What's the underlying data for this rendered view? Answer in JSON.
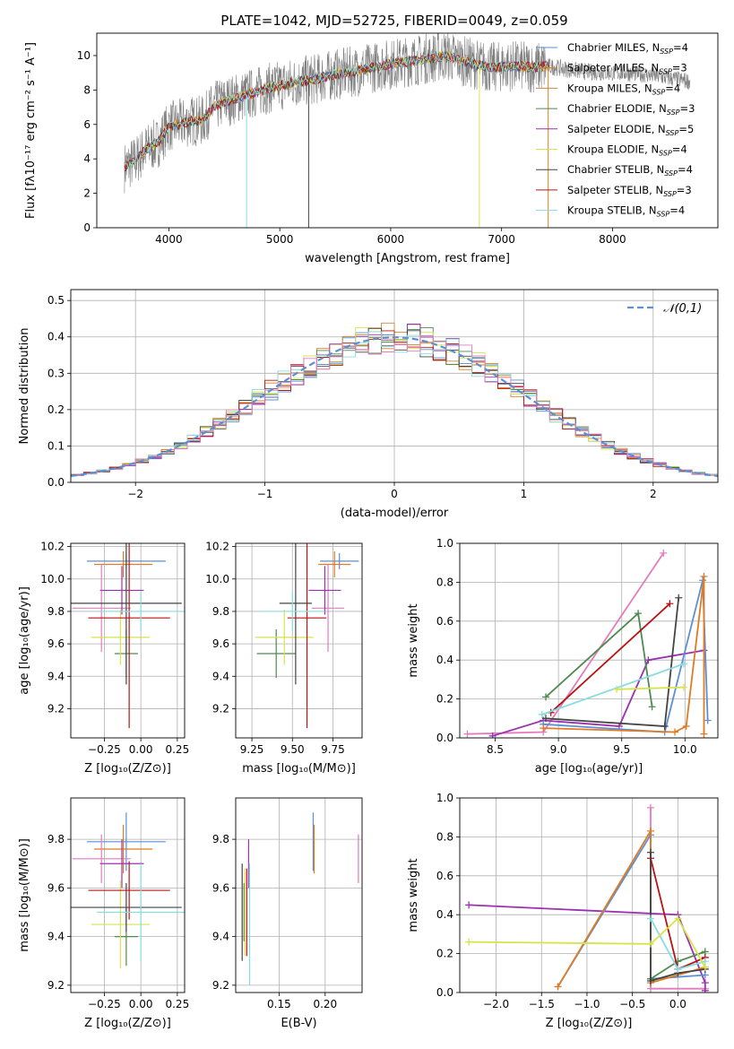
{
  "page_title": "PLATE=1042, MJD=52725, FIBERID=0049, z=0.059",
  "colors": {
    "Chabrier MILES": "#5b8fd6",
    "Salpeter MILES": "#e07b22",
    "Kroupa MILES": "#c9893a",
    "Chabrier ELODIE": "#4f8a4f",
    "Salpeter ELODIE": "#9b30b0",
    "Kroupa ELODIE": "#d7e34d",
    "Chabrier STELIB": "#444444",
    "Salpeter STELIB": "#b81414",
    "Kroupa STELIB": "#86dce0",
    "pink": "#e37bbf",
    "data": "#808080",
    "normal": "#5b8fd6"
  },
  "chart_data": [
    {
      "type": "line",
      "name": "spectrum",
      "title": "PLATE=1042, MJD=52725, FIBERID=0049, z=0.059",
      "xlabel": "wavelength [Angstrom, rest frame]",
      "ylabel": "Flux [fλ10⁻¹⁷ erg cm⁻² s⁻¹ A⁻¹]",
      "xlim": [
        3350,
        8950
      ],
      "ylim": [
        0,
        11.3
      ],
      "xticks": [
        4000,
        5000,
        6000,
        7000,
        8000
      ],
      "yticks": [
        0,
        2,
        4,
        6,
        8,
        10
      ],
      "grid": false,
      "legend_position": "right",
      "continuum": {
        "x": [
          3600,
          3700,
          3800,
          3900,
          4000,
          4100,
          4200,
          4300,
          4400,
          4500,
          4700,
          4900,
          5100,
          5300,
          5500,
          5700,
          5900,
          6100,
          6300,
          6500,
          6700,
          6900,
          7100,
          7300,
          7400,
          7500,
          7700,
          7900,
          8100,
          8300,
          8500,
          8700
        ],
        "y": [
          3.5,
          3.9,
          4.6,
          4.9,
          5.9,
          6.0,
          6.2,
          6.2,
          7.0,
          7.3,
          7.7,
          8.1,
          8.4,
          8.6,
          8.9,
          9.1,
          9.4,
          9.6,
          9.8,
          10.0,
          9.6,
          9.3,
          9.4,
          9.3,
          9.4,
          9.3,
          9.1,
          9.0,
          9.0,
          8.9,
          8.7,
          8.5
        ]
      },
      "series": [
        {
          "name": "Chabrier MILES, N_SSP=4",
          "label_prefix": "Chabrier MILES, N",
          "ssp": "=4",
          "color": "#5b8fd6"
        },
        {
          "name": "Salpeter MILES, N_SSP=3",
          "label_prefix": "Salpeter MILES, N",
          "ssp": "=3",
          "color": "#e07b22"
        },
        {
          "name": "Kroupa MILES, N_SSP=4",
          "label_prefix": "Kroupa MILES, N",
          "ssp": "=4",
          "color": "#c9893a"
        },
        {
          "name": "Chabrier ELODIE, N_SSP=3",
          "label_prefix": "Chabrier ELODIE, N",
          "ssp": "=3",
          "color": "#4f8a4f"
        },
        {
          "name": "Salpeter ELODIE, N_SSP=5",
          "label_prefix": "Salpeter ELODIE, N",
          "ssp": "=5",
          "color": "#9b30b0"
        },
        {
          "name": "Kroupa ELODIE, N_SSP=4",
          "label_prefix": "Kroupa ELODIE, N",
          "ssp": "=4",
          "color": "#d7e34d"
        },
        {
          "name": "Chabrier STELIB, N_SSP=4",
          "label_prefix": "Chabrier STELIB, N",
          "ssp": "=4",
          "color": "#444444"
        },
        {
          "name": "Salpeter STELIB, N_SSP=3",
          "label_prefix": "Salpeter STELIB, N",
          "ssp": "=3",
          "color": "#b81414"
        },
        {
          "name": "Kroupa STELIB, N_SSP=4",
          "label_prefix": "Kroupa STELIB, N",
          "ssp": "=4",
          "color": "#86dce0"
        }
      ],
      "ssp_subscript": "SSP"
    },
    {
      "type": "bar",
      "name": "residual histogram",
      "xlabel": "(data-model)/error",
      "ylabel": "Normed distribution",
      "xlim": [
        -2.5,
        2.5
      ],
      "ylim": [
        0,
        0.53
      ],
      "xticks": [
        -2,
        -1,
        0,
        1,
        2
      ],
      "yticks": [
        0.0,
        0.1,
        0.2,
        0.3,
        0.4,
        0.5
      ],
      "grid": true,
      "legend_position": "top-right",
      "legend": "𝒩(0,1)",
      "bin_width": 0.1
    },
    {
      "type": "scatter",
      "name": "age vs Z",
      "xlabel": "Z [log₁₀(Z/Z⊙)]",
      "ylabel": "age  [log₁₀(age/yr)]",
      "xlim": [
        -0.48,
        0.3
      ],
      "ylim": [
        9.02,
        10.22
      ],
      "xticks": [
        -0.25,
        0.0,
        0.25
      ],
      "yticks": [
        9.2,
        9.4,
        9.6,
        9.8,
        10.0,
        10.2
      ],
      "grid": true,
      "points": [
        {
          "color": "#5b8fd6",
          "x": -0.1,
          "xerr": 0.27,
          "y": 10.11,
          "yerr": 0.05
        },
        {
          "color": "#e07b22",
          "x": -0.12,
          "xerr": 0.2,
          "y": 10.09,
          "yerr": 0.08
        },
        {
          "color": "#e37bbf",
          "x": -0.27,
          "xerr": 0.2,
          "y": 9.82,
          "yerr": 0.27
        },
        {
          "color": "#4f8a4f",
          "x": -0.1,
          "xerr": 0.08,
          "y": 9.54,
          "yerr": 0.15
        },
        {
          "color": "#9b30b0",
          "x": -0.13,
          "xerr": 0.15,
          "y": 9.93,
          "yerr": 0.15
        },
        {
          "color": "#d7e34d",
          "x": -0.14,
          "xerr": 0.2,
          "y": 9.64,
          "yerr": 0.17
        },
        {
          "color": "#444444",
          "x": -0.1,
          "xerr": 0.38,
          "y": 9.85,
          "yerr": 0.5
        },
        {
          "color": "#b81414",
          "x": -0.08,
          "xerr": 0.28,
          "y": 9.76,
          "yerr": 0.68
        },
        {
          "color": "#86dce0",
          "x": 0.0,
          "xerr": 0.3,
          "y": 9.8,
          "yerr": 0.12
        }
      ]
    },
    {
      "type": "scatter",
      "name": "age vs mass",
      "xlabel": "mass [log₁₀(M/M⊙)]",
      "ylabel": "",
      "xlim": [
        9.15,
        9.93
      ],
      "ylim": [
        9.02,
        10.22
      ],
      "xticks": [
        9.25,
        9.5,
        9.75
      ],
      "yticks": [
        9.2,
        9.4,
        9.6,
        9.8,
        10.0,
        10.2
      ],
      "grid": true,
      "points": [
        {
          "color": "#5b8fd6",
          "x": 9.79,
          "xerr": 0.12,
          "y": 10.11,
          "yerr": 0.05
        },
        {
          "color": "#e07b22",
          "x": 9.76,
          "xerr": 0.1,
          "y": 10.09,
          "yerr": 0.08
        },
        {
          "color": "#e37bbf",
          "x": 9.72,
          "xerr": 0.1,
          "y": 9.82,
          "yerr": 0.27
        },
        {
          "color": "#4f8a4f",
          "x": 9.4,
          "xerr": 0.12,
          "y": 9.54,
          "yerr": 0.15
        },
        {
          "color": "#9b30b0",
          "x": 9.7,
          "xerr": 0.1,
          "y": 9.93,
          "yerr": 0.15
        },
        {
          "color": "#d7e34d",
          "x": 9.45,
          "xerr": 0.18,
          "y": 9.64,
          "yerr": 0.17
        },
        {
          "color": "#444444",
          "x": 9.52,
          "xerr": 0.1,
          "y": 9.85,
          "yerr": 0.5
        },
        {
          "color": "#b81414",
          "x": 9.59,
          "xerr": 0.12,
          "y": 9.76,
          "yerr": 0.68
        },
        {
          "color": "#86dce0",
          "x": 9.5,
          "xerr": 0.2,
          "y": 9.8,
          "yerr": 0.12
        }
      ]
    },
    {
      "type": "line",
      "name": "mass weight vs age",
      "xlabel": "age  [log₁₀(age/yr)]",
      "ylabel": "mass weight",
      "xlim": [
        8.22,
        10.26
      ],
      "ylim": [
        0,
        1.0
      ],
      "xticks": [
        8.5,
        9.0,
        9.5,
        10.0
      ],
      "yticks": [
        0.0,
        0.2,
        0.4,
        0.6,
        0.8,
        1.0
      ],
      "grid": true,
      "series": [
        {
          "color": "#e37bbf",
          "points": [
            [
              8.28,
              0.02
            ],
            [
              8.88,
              0.03
            ],
            [
              9.83,
              0.95
            ]
          ]
        },
        {
          "color": "#9b30b0",
          "points": [
            [
              8.48,
              0.01
            ],
            [
              8.88,
              0.09
            ],
            [
              9.48,
              0.06
            ],
            [
              9.71,
              0.4
            ],
            [
              10.15,
              0.45
            ]
          ]
        },
        {
          "color": "#5b8fd6",
          "points": [
            [
              8.88,
              0.07
            ],
            [
              9.84,
              0.03
            ],
            [
              10.14,
              0.81
            ],
            [
              10.18,
              0.09
            ]
          ]
        },
        {
          "color": "#e07b22",
          "points": [
            [
              8.88,
              0.05
            ],
            [
              9.92,
              0.03
            ],
            [
              10.01,
              0.06
            ],
            [
              10.15,
              0.83
            ],
            [
              10.15,
              0.02
            ]
          ]
        },
        {
          "color": "#4f8a4f",
          "points": [
            [
              8.9,
              0.21
            ],
            [
              9.63,
              0.64
            ],
            [
              9.74,
              0.16
            ]
          ]
        },
        {
          "color": "#b81414",
          "points": [
            [
              8.94,
              0.13
            ],
            [
              9.88,
              0.69
            ]
          ]
        },
        {
          "color": "#444444",
          "points": [
            [
              8.9,
              0.1
            ],
            [
              9.84,
              0.06
            ],
            [
              9.95,
              0.72
            ]
          ]
        },
        {
          "color": "#86dce0",
          "points": [
            [
              8.87,
              0.12
            ],
            [
              9.99,
              0.38
            ]
          ]
        },
        {
          "color": "#d7e34d",
          "points": [
            [
              9.46,
              0.25
            ],
            [
              9.99,
              0.26
            ]
          ]
        }
      ]
    },
    {
      "type": "scatter",
      "name": "mass vs Z",
      "xlabel": "Z [log₁₀(Z/Z⊙)]",
      "ylabel": "mass [log₁₀(M/M⊙)]",
      "xlim": [
        -0.48,
        0.3
      ],
      "ylim": [
        9.17,
        9.97
      ],
      "xticks": [
        -0.25,
        0.0,
        0.25
      ],
      "yticks": [
        9.2,
        9.4,
        9.6,
        9.8
      ],
      "grid": true,
      "points": [
        {
          "color": "#5b8fd6",
          "x": -0.1,
          "xerr": 0.27,
          "y": 9.79,
          "yerr": 0.12
        },
        {
          "color": "#e07b22",
          "x": -0.12,
          "xerr": 0.2,
          "y": 9.76,
          "yerr": 0.1
        },
        {
          "color": "#e37bbf",
          "x": -0.27,
          "xerr": 0.2,
          "y": 9.72,
          "yerr": 0.1
        },
        {
          "color": "#4f8a4f",
          "x": -0.1,
          "xerr": 0.08,
          "y": 9.4,
          "yerr": 0.12
        },
        {
          "color": "#9b30b0",
          "x": -0.13,
          "xerr": 0.15,
          "y": 9.7,
          "yerr": 0.1
        },
        {
          "color": "#d7e34d",
          "x": -0.14,
          "xerr": 0.2,
          "y": 9.45,
          "yerr": 0.18
        },
        {
          "color": "#444444",
          "x": -0.1,
          "xerr": 0.38,
          "y": 9.52,
          "yerr": 0.1
        },
        {
          "color": "#b81414",
          "x": -0.08,
          "xerr": 0.28,
          "y": 9.59,
          "yerr": 0.12
        },
        {
          "color": "#86dce0",
          "x": 0.0,
          "xerr": 0.3,
          "y": 9.5,
          "yerr": 0.2
        }
      ]
    },
    {
      "type": "scatter",
      "name": "mass vs E(B-V)",
      "xlabel": "E(B-V)",
      "ylabel": "",
      "xlim": [
        0.103,
        0.24
      ],
      "ylim": [
        9.17,
        9.97
      ],
      "xticks": [
        0.15,
        0.2
      ],
      "yticks": [
        9.2,
        9.4,
        9.6,
        9.8
      ],
      "grid": true,
      "points": [
        {
          "color": "#5b8fd6",
          "x": 0.187,
          "y": 9.79,
          "yerr": 0.12
        },
        {
          "color": "#e07b22",
          "x": 0.188,
          "y": 9.76,
          "yerr": 0.1
        },
        {
          "color": "#e37bbf",
          "x": 0.236,
          "y": 9.72,
          "yerr": 0.1
        },
        {
          "color": "#4f8a4f",
          "x": 0.112,
          "y": 9.5,
          "yerr": 0.12
        },
        {
          "color": "#9b30b0",
          "x": 0.117,
          "y": 9.7,
          "yerr": 0.1
        },
        {
          "color": "#d7e34d",
          "x": 0.113,
          "y": 9.5,
          "yerr": 0.18
        },
        {
          "color": "#444444",
          "x": 0.11,
          "y": 9.5,
          "yerr": 0.2
        },
        {
          "color": "#b81414",
          "x": 0.115,
          "y": 9.5,
          "yerr": 0.18
        },
        {
          "color": "#86dce0",
          "x": 0.118,
          "y": 9.45,
          "yerr": 0.25
        }
      ]
    },
    {
      "type": "line",
      "name": "mass weight vs Z",
      "xlabel": "Z [log₁₀(Z/Z⊙)]",
      "ylabel": "mass weight",
      "xlim": [
        -2.4,
        0.44
      ],
      "ylim": [
        0,
        1.0
      ],
      "xticks": [
        -2.0,
        -1.5,
        -1.0,
        -0.5,
        0.0
      ],
      "yticks": [
        0.0,
        0.2,
        0.4,
        0.6,
        0.8,
        1.0
      ],
      "grid": true,
      "series": [
        {
          "color": "#e37bbf",
          "points": [
            [
              -0.3,
              0.95
            ],
            [
              -0.3,
              0.02
            ],
            [
              0.3,
              0.02
            ]
          ]
        },
        {
          "color": "#9b30b0",
          "points": [
            [
              -2.3,
              0.45
            ],
            [
              0.0,
              0.4
            ],
            [
              0.3,
              0.05
            ],
            [
              0.3,
              0.01
            ]
          ]
        },
        {
          "color": "#5b8fd6",
          "points": [
            [
              -1.32,
              0.03
            ],
            [
              -0.3,
              0.81
            ],
            [
              -0.3,
              0.07
            ],
            [
              0.3,
              0.09
            ]
          ]
        },
        {
          "color": "#e07b22",
          "points": [
            [
              -1.32,
              0.03
            ],
            [
              -0.3,
              0.83
            ],
            [
              -0.3,
              0.05
            ],
            [
              0.3,
              0.13
            ]
          ]
        },
        {
          "color": "#4f8a4f",
          "points": [
            [
              -0.3,
              0.07
            ],
            [
              0.0,
              0.16
            ],
            [
              0.3,
              0.21
            ]
          ]
        },
        {
          "color": "#b81414",
          "points": [
            [
              -0.3,
              0.69
            ],
            [
              0.0,
              0.12
            ],
            [
              0.3,
              0.18
            ]
          ]
        },
        {
          "color": "#444444",
          "points": [
            [
              -0.3,
              0.72
            ],
            [
              -0.3,
              0.06
            ],
            [
              0.0,
              0.1
            ],
            [
              0.3,
              0.12
            ]
          ]
        },
        {
          "color": "#86dce0",
          "points": [
            [
              -0.3,
              0.38
            ],
            [
              0.0,
              0.12
            ],
            [
              0.3,
              0.16
            ]
          ]
        },
        {
          "color": "#d7e34d",
          "points": [
            [
              -2.3,
              0.26
            ],
            [
              -0.3,
              0.25
            ],
            [
              0.0,
              0.38
            ],
            [
              0.3,
              0.13
            ]
          ]
        }
      ]
    }
  ]
}
